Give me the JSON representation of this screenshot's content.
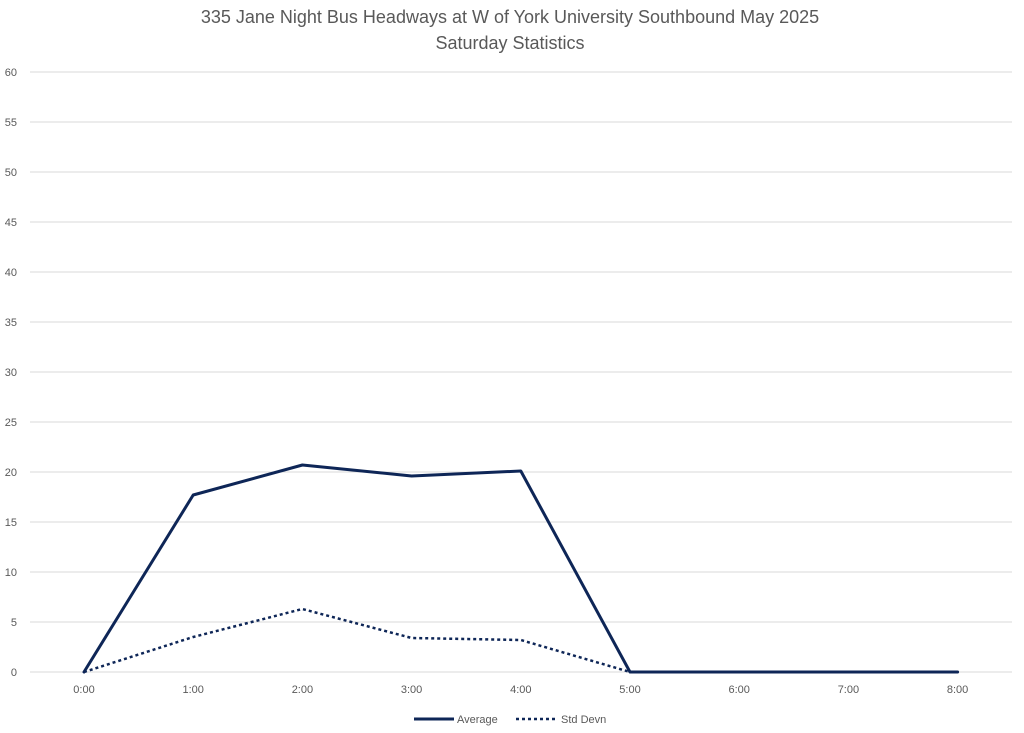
{
  "chart_data": {
    "type": "line",
    "title": "335 Jane Night Bus Headways at W of York University Southbound May 2025",
    "subtitle": "Saturday Statistics",
    "categories": [
      "0:00",
      "1:00",
      "2:00",
      "3:00",
      "4:00",
      "5:00",
      "6:00",
      "7:00",
      "8:00"
    ],
    "ylim": [
      0,
      60
    ],
    "yticks": [
      "0",
      "5",
      "10",
      "15",
      "20",
      "25",
      "30",
      "35",
      "40",
      "45",
      "50",
      "55",
      "60"
    ],
    "grid": true,
    "legend_position": "bottom",
    "series": [
      {
        "name": "Average",
        "values": [
          0,
          17.7,
          20.7,
          19.6,
          20.1,
          0,
          0,
          0,
          0
        ],
        "color": "#0e2657",
        "style": "solid"
      },
      {
        "name": "Std Devn",
        "values": [
          0,
          3.5,
          6.3,
          3.4,
          3.2,
          0,
          null,
          null,
          null
        ],
        "color": "#0e2657",
        "style": "dotted"
      }
    ]
  }
}
